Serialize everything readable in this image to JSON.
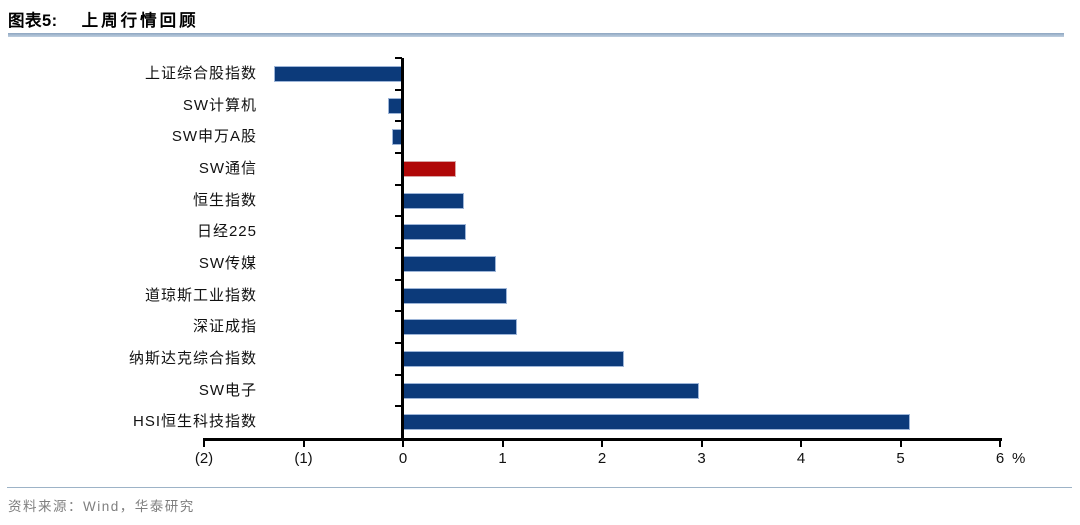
{
  "title": {
    "prefix": "图表5:",
    "text": "上周行情回顾"
  },
  "footer": {
    "source_label": "资料来源：Wind，华泰研究"
  },
  "chart_data": {
    "type": "bar",
    "orientation": "horizontal",
    "title": "上周行情回顾",
    "categories": [
      "上证综合股指数",
      "SW计算机",
      "SW申万A股",
      "SW通信",
      "恒生指数",
      "日经225",
      "SW传媒",
      "道琼斯工业指数",
      "深证成指",
      "纳斯达克综合指数",
      "SW电子",
      "HSI恒生科技指数"
    ],
    "values": [
      -1.3,
      -0.15,
      -0.11,
      0.53,
      0.61,
      0.63,
      0.93,
      1.05,
      1.15,
      2.22,
      2.97,
      5.1
    ],
    "unit_label": "%",
    "xlim": [
      -2,
      6
    ],
    "x_ticks": [
      -2,
      -1,
      0,
      1,
      2,
      3,
      4,
      5,
      6
    ],
    "x_tick_labels": [
      "(2)",
      "(1)",
      "0",
      "1",
      "2",
      "3",
      "4",
      "5",
      "6"
    ],
    "bar_color": "#0c3a7a",
    "highlight_color": "#b00707",
    "highlight_index": 3,
    "axis_color": "#000000",
    "grid": false,
    "legend": "none"
  }
}
